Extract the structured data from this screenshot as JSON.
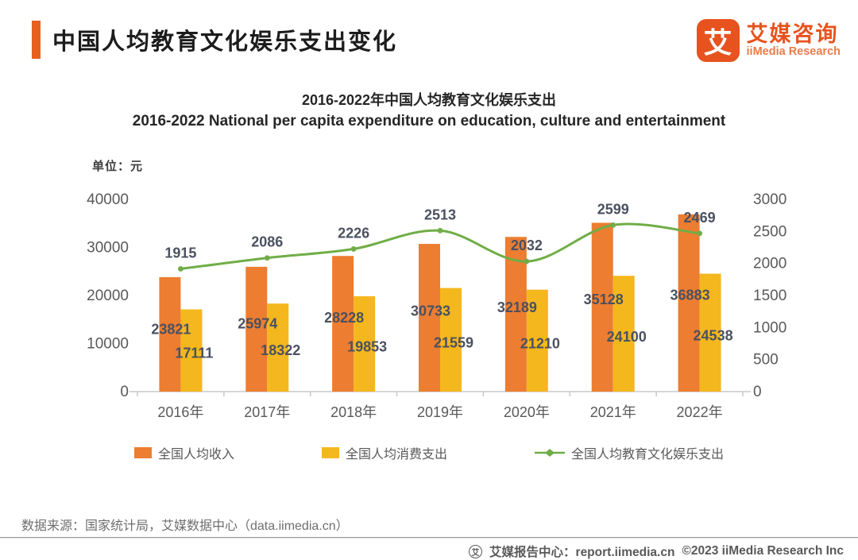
{
  "header": {
    "title": "中国人均教育文化娱乐支出变化"
  },
  "logo": {
    "glyph": "艾",
    "name_cn": "艾媒咨询",
    "name_en": "iiMedia Research",
    "brand_color": "#e7531f"
  },
  "chart_data": {
    "type": "bar",
    "title_cn": "2016-2022年中国人均教育文化娱乐支出",
    "title_en": "2016-2022 National per capita expenditure on education, culture and entertainment",
    "unit_label": "单位：元",
    "categories": [
      "2016年",
      "2017年",
      "2018年",
      "2019年",
      "2020年",
      "2021年",
      "2022年"
    ],
    "series": [
      {
        "name": "全国人均收入",
        "type": "bar",
        "axis": "left",
        "color": "#ED7D31",
        "values": [
          23821,
          25974,
          28228,
          30733,
          32189,
          35128,
          36883
        ]
      },
      {
        "name": "全国人均消费支出",
        "type": "bar",
        "axis": "left",
        "color": "#F5B71E",
        "values": [
          17111,
          18322,
          19853,
          21559,
          21210,
          24100,
          24538
        ]
      },
      {
        "name": "全国人均教育文化娱乐支出",
        "type": "line",
        "axis": "right",
        "color": "#70AD47",
        "values": [
          1915,
          2086,
          2226,
          2513,
          2032,
          2599,
          2469
        ]
      }
    ],
    "left_axis": {
      "min": 0,
      "max": 40000,
      "step": 10000,
      "ticks": [
        0,
        10000,
        20000,
        30000,
        40000
      ]
    },
    "right_axis": {
      "min": 0,
      "max": 3000,
      "step": 500,
      "ticks": [
        0,
        500,
        1000,
        1500,
        2000,
        2500,
        3000
      ]
    },
    "grid": false,
    "legend_position": "bottom",
    "data_labels": true
  },
  "footer": {
    "source": "数据来源：国家统计局，艾媒数据中心（data.iimedia.cn）",
    "badge_glyph": "艾",
    "report_center": "艾媒报告中心：report.iimedia.cn",
    "copyright": "©2023  iiMedia Research Inc"
  }
}
